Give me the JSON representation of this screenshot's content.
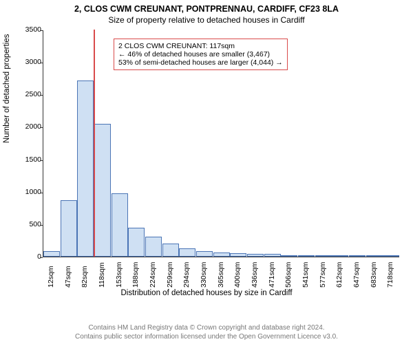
{
  "title_main": "2, CLOS CWM CREUNANT, PONTPRENNAU, CARDIFF, CF23 8LA",
  "title_sub": "Size of property relative to detached houses in Cardiff",
  "ylabel": "Number of detached properties",
  "xlabel": "Distribution of detached houses by size in Cardiff",
  "chart": {
    "type": "bar",
    "ylim_max": 3500,
    "ytick_step": 500,
    "yticks": [
      0,
      500,
      1000,
      1500,
      2000,
      2500,
      3000,
      3500
    ],
    "bar_fill": "#cfe0f3",
    "bar_border": "#4a74b5",
    "background": "#ffffff",
    "marker_color": "#d94a4a",
    "marker_x_value": 117,
    "x_start": 12,
    "x_step": 35.3,
    "categories": [
      "12sqm",
      "47sqm",
      "82sqm",
      "118sqm",
      "153sqm",
      "188sqm",
      "224sqm",
      "259sqm",
      "294sqm",
      "330sqm",
      "365sqm",
      "400sqm",
      "436sqm",
      "471sqm",
      "506sqm",
      "541sqm",
      "577sqm",
      "612sqm",
      "647sqm",
      "683sqm",
      "718sqm"
    ],
    "values": [
      85,
      870,
      2720,
      2050,
      980,
      450,
      310,
      200,
      130,
      85,
      65,
      55,
      45,
      45,
      5,
      5,
      5,
      5,
      5,
      5,
      5
    ]
  },
  "info_box": {
    "line1": "2 CLOS CWM CREUNANT: 117sqm",
    "line2": "← 46% of detached houses are smaller (3,467)",
    "line3": "53% of semi-detached houses are larger (4,044) →"
  },
  "footer": {
    "line1": "Contains HM Land Registry data © Crown copyright and database right 2024.",
    "line2": "Contains public sector information licensed under the Open Government Licence v3.0."
  },
  "fontsize": {
    "title": 12.5,
    "subtitle": 12,
    "axis_label": 11.5,
    "tick": 10.5,
    "info": 10.5,
    "footer": 10
  }
}
